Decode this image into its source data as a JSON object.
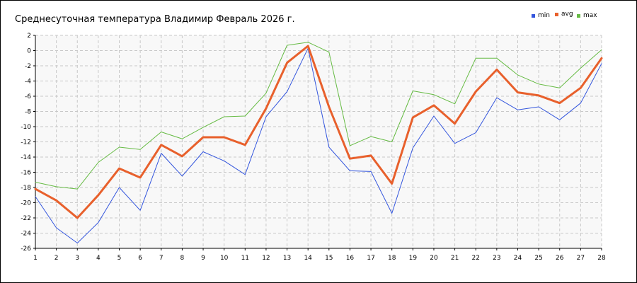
{
  "chart_data": {
    "type": "line",
    "title": "Среднесуточная температура Владимир  Февраль 2026 г.",
    "xlabel": "",
    "ylabel": "",
    "x": [
      1,
      2,
      3,
      4,
      5,
      6,
      7,
      8,
      9,
      10,
      11,
      12,
      13,
      14,
      15,
      16,
      17,
      18,
      19,
      20,
      21,
      22,
      23,
      24,
      25,
      26,
      27,
      28
    ],
    "xlim": [
      1,
      28
    ],
    "ylim": [
      -26,
      2
    ],
    "y_ticks": [
      2,
      0,
      -2,
      -4,
      -6,
      -8,
      -10,
      -12,
      -14,
      -16,
      -18,
      -20,
      -22,
      -24,
      -26
    ],
    "grid": true,
    "legend_position": "top-right",
    "series": [
      {
        "name": "min",
        "color": "#3355dd",
        "values": [
          -19.2,
          -23.3,
          -25.3,
          -22.6,
          -18.0,
          -21.0,
          -13.5,
          -16.5,
          -13.3,
          -14.5,
          -16.3,
          -8.7,
          -5.4,
          0.3,
          -12.7,
          -15.8,
          -15.9,
          -21.4,
          -12.8,
          -8.6,
          -12.2,
          -10.8,
          -6.2,
          -7.8,
          -7.4,
          -9.1,
          -6.9,
          -1.7
        ]
      },
      {
        "name": "avg",
        "color": "#e8602c",
        "values": [
          -18.2,
          -19.7,
          -22.0,
          -19.0,
          -15.5,
          -16.7,
          -12.4,
          -13.9,
          -11.4,
          -11.4,
          -12.4,
          -7.6,
          -1.6,
          0.6,
          -7.4,
          -14.2,
          -13.8,
          -17.5,
          -8.8,
          -7.2,
          -9.6,
          -5.4,
          -2.5,
          -5.5,
          -5.9,
          -6.9,
          -4.9,
          -1.0
        ]
      },
      {
        "name": "max",
        "color": "#66bb44",
        "values": [
          -17.3,
          -17.9,
          -18.2,
          -14.7,
          -12.7,
          -13.0,
          -10.7,
          -11.6,
          -10.1,
          -8.7,
          -8.6,
          -5.6,
          0.7,
          1.1,
          -0.2,
          -12.5,
          -11.3,
          -12.0,
          -5.3,
          -5.8,
          -7.0,
          -1.0,
          -1.0,
          -3.2,
          -4.4,
          -4.9,
          -2.3,
          0.1
        ]
      }
    ]
  }
}
